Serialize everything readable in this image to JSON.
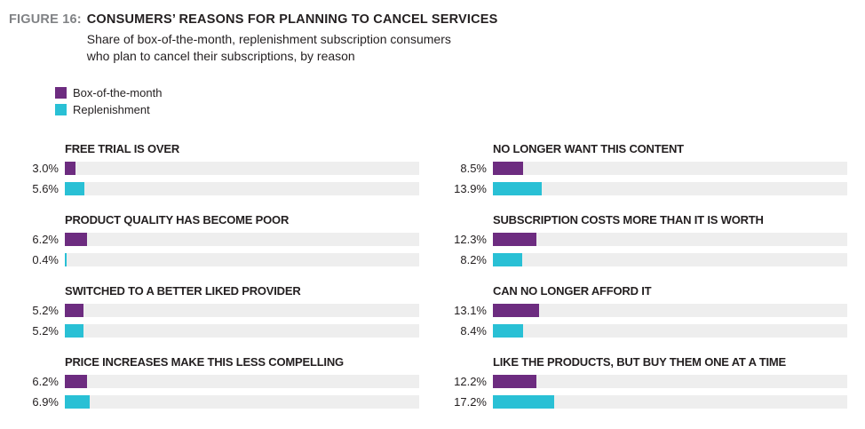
{
  "figure": {
    "label": "FIGURE 16:",
    "title": "CONSUMERS’ REASONS FOR PLANNING TO CANCEL SERVICES",
    "subtitle_line1": "Share of box-of-the-month, replenishment subscription consumers",
    "subtitle_line2": "who plan to cancel their subscriptions, by reason"
  },
  "legend": [
    {
      "label": "Box-of-the-month",
      "color": "#6d2c80"
    },
    {
      "label": "Replenishment",
      "color": "#29c0d5"
    }
  ],
  "colors": {
    "box_of_the_month": "#6d2c80",
    "replenishment": "#29c0d5",
    "bar_track": "#eeeeee",
    "figure_label_gray": "#808285",
    "text": "#231f20"
  },
  "chart_data": {
    "type": "bar",
    "orientation": "horizontal",
    "unit": "percent",
    "axis_max": 100,
    "grid": false,
    "legend_position": "top-left",
    "series_names": [
      "Box-of-the-month",
      "Replenishment"
    ],
    "columns": [
      {
        "groups": [
          {
            "category": "FREE TRIAL IS OVER",
            "values": [
              3.0,
              5.6
            ],
            "labels": [
              "3.0%",
              "5.6%"
            ]
          },
          {
            "category": "PRODUCT QUALITY HAS BECOME POOR",
            "values": [
              6.2,
              0.4
            ],
            "labels": [
              "6.2%",
              "0.4%"
            ]
          },
          {
            "category": "SWITCHED TO A BETTER LIKED PROVIDER",
            "values": [
              5.2,
              5.2
            ],
            "labels": [
              "5.2%",
              "5.2%"
            ]
          },
          {
            "category": "PRICE INCREASES MAKE THIS LESS COMPELLING",
            "values": [
              6.2,
              6.9
            ],
            "labels": [
              "6.2%",
              "6.9%"
            ]
          }
        ]
      },
      {
        "groups": [
          {
            "category": "NO LONGER WANT THIS CONTENT",
            "values": [
              8.5,
              13.9
            ],
            "labels": [
              "8.5%",
              "13.9%"
            ]
          },
          {
            "category": "SUBSCRIPTION COSTS MORE THAN IT IS WORTH",
            "values": [
              12.3,
              8.2
            ],
            "labels": [
              "12.3%",
              "8.2%"
            ]
          },
          {
            "category": "CAN NO LONGER AFFORD IT",
            "values": [
              13.1,
              8.4
            ],
            "labels": [
              "13.1%",
              "8.4%"
            ]
          },
          {
            "category": "LIKE THE PRODUCTS, BUT BUY THEM ONE AT A TIME",
            "values": [
              12.2,
              17.2
            ],
            "labels": [
              "12.2%",
              "17.2%"
            ]
          }
        ]
      }
    ]
  }
}
